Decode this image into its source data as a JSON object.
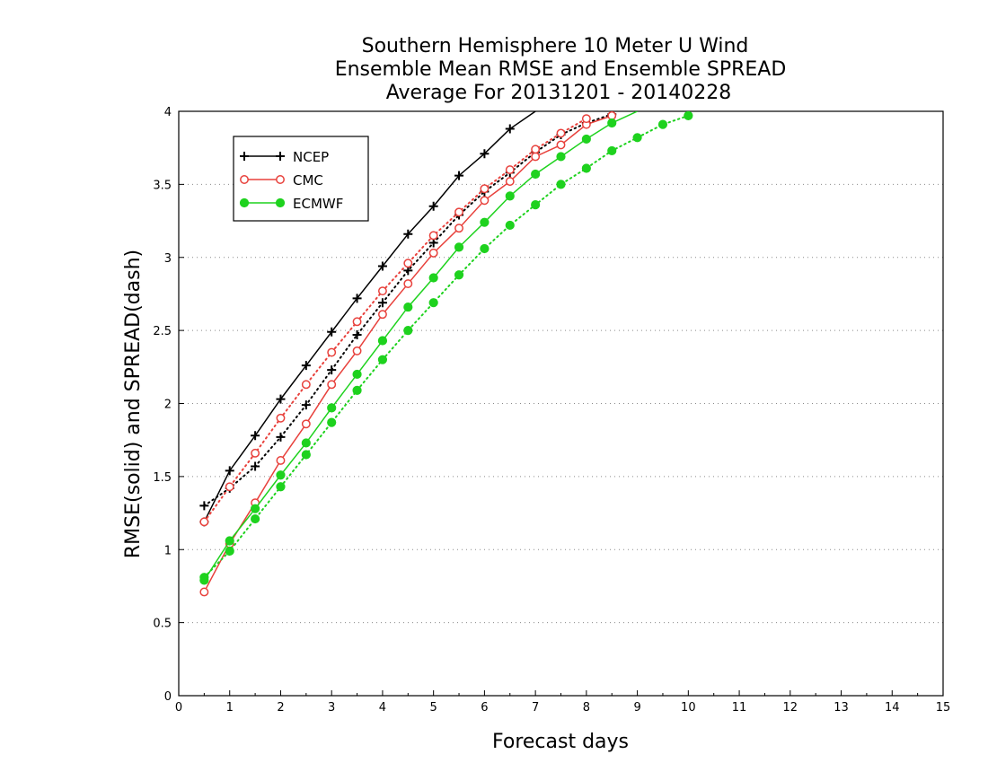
{
  "chart_data": {
    "type": "line",
    "title_lines": [
      "Southern Hemisphere 10 Meter U Wind",
      "Ensemble Mean RMSE and Ensemble SPREAD",
      "Average For 20131201 - 20140228"
    ],
    "xlabel": "Forecast days",
    "ylabel": "RMSE(solid) and SPREAD(dash)",
    "xlim": [
      0,
      15
    ],
    "ylim": [
      0,
      4
    ],
    "x_ticks": [
      "0",
      "1",
      "2",
      "3",
      "4",
      "5",
      "6",
      "7",
      "8",
      "9",
      "10",
      "11",
      "12",
      "13",
      "14",
      "15"
    ],
    "y_ticks": [
      "0",
      "0.5",
      "1",
      "1.5",
      "2",
      "2.5",
      "3",
      "3.5",
      "4"
    ],
    "grid": "horizontal-dotted",
    "legend_position": "top-left",
    "legend": [
      {
        "name": "NCEP",
        "color": "#000000",
        "marker": "plus"
      },
      {
        "name": "CMC",
        "color": "#e8413c",
        "marker": "open-circle"
      },
      {
        "name": "ECMWF",
        "color": "#1ed21e",
        "marker": "filled-circle"
      }
    ],
    "series": [
      {
        "name": "NCEP",
        "kind": "RMSE",
        "style": "solid",
        "color": "#000000",
        "marker": "plus",
        "x": [
          0.5,
          1,
          1.5,
          2,
          2.5,
          3,
          3.5,
          4,
          4.5,
          5,
          5.5,
          6,
          6.5,
          7
        ],
        "values": [
          1.19,
          1.54,
          1.78,
          2.03,
          2.26,
          2.49,
          2.72,
          2.94,
          3.16,
          3.35,
          3.56,
          3.71,
          3.88,
          4.0
        ]
      },
      {
        "name": "NCEP",
        "kind": "SPREAD",
        "style": "dotted",
        "color": "#000000",
        "marker": "plus",
        "x": [
          0.5,
          1,
          1.5,
          2,
          2.5,
          3,
          3.5,
          4,
          4.5,
          5,
          5.5,
          6,
          6.5,
          7,
          7.5,
          8,
          8.5
        ],
        "values": [
          1.3,
          1.42,
          1.57,
          1.77,
          1.99,
          2.23,
          2.47,
          2.69,
          2.91,
          3.1,
          3.29,
          3.45,
          3.58,
          3.72,
          3.84,
          3.92,
          3.98
        ]
      },
      {
        "name": "CMC",
        "kind": "RMSE",
        "style": "solid",
        "color": "#e8413c",
        "marker": "open-circle",
        "x": [
          0.5,
          1,
          1.5,
          2,
          2.5,
          3,
          3.5,
          4,
          4.5,
          5,
          5.5,
          6,
          6.5,
          7,
          7.5,
          8,
          8.5
        ],
        "values": [
          0.71,
          1.04,
          1.32,
          1.61,
          1.86,
          2.13,
          2.36,
          2.61,
          2.82,
          3.03,
          3.2,
          3.39,
          3.52,
          3.69,
          3.77,
          3.91,
          3.97
        ]
      },
      {
        "name": "CMC",
        "kind": "SPREAD",
        "style": "dotted",
        "color": "#e8413c",
        "marker": "open-circle",
        "x": [
          0.5,
          1,
          1.5,
          2,
          2.5,
          3,
          3.5,
          4,
          4.5,
          5,
          5.5,
          6,
          6.5,
          7,
          7.5,
          8
        ],
        "values": [
          1.19,
          1.43,
          1.66,
          1.9,
          2.13,
          2.35,
          2.56,
          2.77,
          2.96,
          3.15,
          3.31,
          3.47,
          3.6,
          3.74,
          3.85,
          3.95
        ]
      },
      {
        "name": "ECMWF",
        "kind": "RMSE",
        "style": "solid",
        "color": "#1ed21e",
        "marker": "filled-circle",
        "x": [
          0.5,
          1,
          1.5,
          2,
          2.5,
          3,
          3.5,
          4,
          4.5,
          5,
          5.5,
          6,
          6.5,
          7,
          7.5,
          8,
          8.5,
          9
        ],
        "values": [
          0.79,
          1.06,
          1.28,
          1.51,
          1.73,
          1.97,
          2.2,
          2.43,
          2.66,
          2.86,
          3.07,
          3.24,
          3.42,
          3.57,
          3.69,
          3.81,
          3.92,
          4.0
        ]
      },
      {
        "name": "ECMWF",
        "kind": "SPREAD",
        "style": "dotted",
        "color": "#1ed21e",
        "marker": "filled-circle",
        "x": [
          0.5,
          1,
          1.5,
          2,
          2.5,
          3,
          3.5,
          4,
          4.5,
          5,
          5.5,
          6,
          6.5,
          7,
          7.5,
          8,
          8.5,
          9,
          9.5,
          10
        ],
        "values": [
          0.81,
          0.99,
          1.21,
          1.43,
          1.65,
          1.87,
          2.09,
          2.3,
          2.5,
          2.69,
          2.88,
          3.06,
          3.22,
          3.36,
          3.5,
          3.61,
          3.73,
          3.82,
          3.91,
          3.97
        ]
      }
    ]
  }
}
